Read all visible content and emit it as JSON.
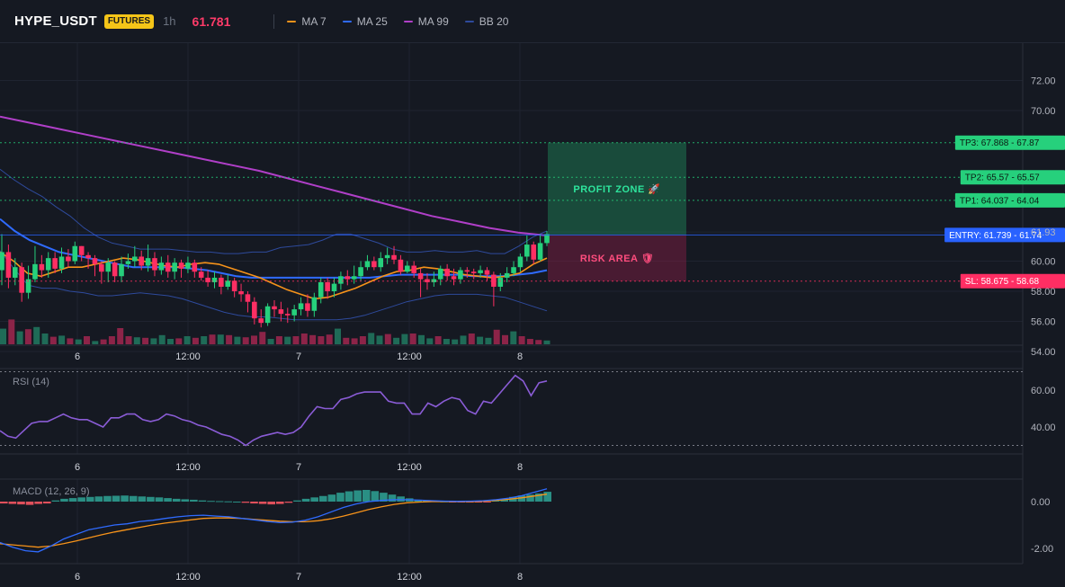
{
  "header": {
    "symbol": "HYPE_USDT",
    "badge": "FUTURES",
    "timeframe": "1h",
    "last_price": "61.781",
    "legend": [
      {
        "label": "MA 7",
        "color": "#f7931a"
      },
      {
        "label": "MA 25",
        "color": "#2f6bff"
      },
      {
        "label": "MA 99",
        "color": "#b03fc8"
      },
      {
        "label": "BB 20",
        "color": "#2e4a9c"
      }
    ]
  },
  "colors": {
    "up": "#26d07c",
    "down": "#ff2e63",
    "ma7": "#f7931a",
    "ma25": "#2f6bff",
    "ma99": "#b03fc8",
    "bb": "#2e4a9c",
    "rsi": "#8a5cd6",
    "macd": "#2f6bff",
    "signal": "#f7931a",
    "entry": "#2962ff",
    "tp": "#26d07c",
    "sl": "#ff2e63"
  },
  "chart_data": [
    {
      "type": "candlestick",
      "pane": "price",
      "yaxis": {
        "ticks": [
          "72.00",
          "70.00",
          "61.93",
          "60.00",
          "58.00",
          "56.00",
          "54.00"
        ]
      },
      "xaxis": {
        "ticks": [
          "6",
          "12:00",
          "7",
          "12:00",
          "8"
        ]
      },
      "series": [
        {
          "name": "MA 7",
          "values": [
            60.6,
            60.0,
            59.2,
            59.0,
            59.3,
            59.6,
            59.6,
            59.8,
            60.0,
            60.2,
            60.1,
            59.9,
            59.7,
            59.6,
            59.8,
            59.9,
            59.8,
            59.5,
            59.2,
            58.9,
            58.5,
            58.1,
            57.8,
            57.5,
            57.6,
            57.9,
            58.2,
            58.6,
            59.0,
            59.3,
            59.4,
            59.6,
            59.5,
            59.3,
            59.1,
            59.0,
            58.9,
            59.0,
            59.2,
            59.8,
            60.2
          ]
        },
        {
          "name": "MA 25",
          "values": [
            62.8,
            62.0,
            61.4,
            61.0,
            60.6,
            60.4,
            60.2,
            60.0,
            59.8,
            59.6,
            59.6,
            59.6,
            59.6,
            59.5,
            59.4,
            59.2,
            59.0,
            58.9,
            58.9,
            58.9,
            58.9,
            58.9,
            58.9,
            58.9,
            58.9,
            58.9,
            59.0,
            59.1,
            59.1,
            59.1,
            59.1,
            59.1,
            59.0,
            59.0,
            59.0,
            59.1,
            59.2,
            59.4
          ]
        },
        {
          "name": "MA 99",
          "values": [
            69.6,
            69.2,
            68.8,
            68.4,
            68.0,
            67.6,
            67.2,
            66.8,
            66.4,
            66.0,
            65.5,
            65.0,
            64.5,
            64.0,
            63.5,
            63.0,
            62.6,
            62.2,
            61.9,
            61.7
          ]
        },
        {
          "name": "BB 20 upper",
          "values": [
            66.1,
            65.4,
            64.8,
            64.3,
            63.6,
            63.0,
            62.2,
            61.6,
            61.2,
            61.0,
            60.8,
            60.8,
            60.8,
            60.7,
            60.6,
            60.6,
            60.5,
            60.5,
            60.6,
            60.6,
            60.9,
            61.0,
            61.1,
            61.4,
            61.8,
            61.8,
            61.5,
            61.2,
            60.8,
            60.6,
            60.6,
            60.7,
            60.6,
            60.6,
            60.7,
            60.5,
            60.5,
            61.0,
            61.6,
            62.0
          ]
        },
        {
          "name": "BB 20 lower",
          "values": [
            60.7,
            59.5,
            58.4,
            58.2,
            58.2,
            58.0,
            57.9,
            57.7,
            57.7,
            57.8,
            57.9,
            57.8,
            57.7,
            57.5,
            57.2,
            56.9,
            56.6,
            56.4,
            56.3,
            56.3,
            56.2,
            56.1,
            56.1,
            56.1,
            56.1,
            56.2,
            56.4,
            56.7,
            57.0,
            57.3,
            57.5,
            57.7,
            57.8,
            57.8,
            57.8,
            57.7,
            57.6,
            57.3,
            57.0,
            56.7
          ]
        }
      ],
      "candles": [
        [
          59.4,
          60.6,
          61.8,
          58.4
        ],
        [
          60.6,
          58.9,
          61.1,
          58.2
        ],
        [
          58.9,
          59.6,
          60.2,
          58.4
        ],
        [
          59.6,
          57.9,
          59.9,
          57.3
        ],
        [
          57.9,
          58.8,
          59.7,
          57.5
        ],
        [
          58.8,
          59.8,
          61.0,
          58.6
        ],
        [
          59.8,
          59.4,
          60.4,
          58.9
        ],
        [
          59.4,
          60.2,
          60.6,
          58.9
        ],
        [
          60.2,
          59.5,
          60.6,
          59.2
        ],
        [
          59.5,
          60.3,
          60.9,
          59.2
        ],
        [
          60.3,
          60.0,
          60.8,
          59.6
        ],
        [
          60.0,
          61.0,
          61.3,
          59.8
        ],
        [
          61.0,
          60.4,
          61.0,
          60.0
        ],
        [
          60.4,
          60.2,
          60.6,
          59.5
        ],
        [
          60.2,
          59.8,
          60.4,
          59.0
        ],
        [
          59.8,
          59.3,
          60.0,
          58.5
        ],
        [
          59.3,
          59.9,
          60.2,
          58.6
        ],
        [
          59.9,
          59.0,
          60.0,
          58.6
        ],
        [
          59.0,
          59.8,
          60.3,
          58.6
        ],
        [
          59.8,
          60.0,
          60.5,
          59.5
        ],
        [
          60.0,
          60.3,
          61.0,
          59.6
        ],
        [
          60.3,
          59.7,
          60.7,
          59.4
        ],
        [
          59.7,
          60.2,
          61.1,
          59.3
        ],
        [
          60.2,
          59.4,
          60.6,
          59.0
        ],
        [
          59.4,
          59.9,
          60.3,
          59.1
        ],
        [
          59.9,
          59.3,
          60.4,
          58.9
        ],
        [
          59.3,
          59.9,
          60.2,
          58.8
        ],
        [
          59.9,
          59.5,
          60.1,
          58.9
        ],
        [
          59.5,
          59.9,
          60.3,
          59.2
        ],
        [
          59.9,
          59.3,
          60.1,
          58.9
        ],
        [
          59.3,
          58.9,
          59.6,
          58.7
        ],
        [
          58.9,
          58.6,
          59.4,
          58.3
        ],
        [
          58.6,
          58.9,
          59.3,
          58.2
        ],
        [
          58.9,
          58.3,
          59.1,
          57.8
        ],
        [
          58.3,
          58.7,
          59.1,
          58.1
        ],
        [
          58.7,
          58.0,
          58.9,
          57.6
        ],
        [
          58.0,
          57.8,
          58.5,
          57.3
        ],
        [
          57.8,
          57.3,
          58.0,
          56.6
        ],
        [
          57.3,
          56.2,
          57.6,
          55.8
        ],
        [
          56.2,
          55.9,
          56.8,
          55.6
        ],
        [
          55.9,
          57.0,
          57.2,
          55.7
        ],
        [
          57.0,
          56.8,
          57.4,
          56.3
        ],
        [
          56.8,
          56.5,
          57.3,
          56.0
        ],
        [
          56.5,
          56.4,
          56.9,
          55.9
        ],
        [
          56.4,
          56.8,
          57.1,
          56.0
        ],
        [
          56.8,
          57.2,
          57.6,
          56.4
        ],
        [
          57.2,
          56.7,
          57.8,
          56.3
        ],
        [
          56.7,
          57.6,
          57.9,
          56.3
        ],
        [
          57.6,
          58.6,
          58.9,
          57.2
        ],
        [
          58.6,
          58.0,
          58.9,
          57.5
        ],
        [
          58.0,
          58.5,
          58.9,
          57.6
        ],
        [
          58.5,
          59.0,
          59.3,
          58.1
        ],
        [
          59.0,
          58.8,
          59.4,
          58.4
        ],
        [
          58.8,
          59.0,
          59.7,
          58.5
        ],
        [
          59.0,
          59.6,
          60.0,
          58.7
        ],
        [
          59.6,
          60.0,
          60.4,
          59.4
        ],
        [
          60.0,
          59.6,
          60.3,
          59.4
        ],
        [
          59.6,
          60.2,
          60.6,
          59.3
        ],
        [
          60.2,
          60.4,
          60.9,
          59.8
        ],
        [
          60.4,
          60.1,
          61.0,
          59.8
        ],
        [
          60.1,
          59.3,
          60.4,
          59.1
        ],
        [
          59.3,
          59.7,
          60.0,
          59.2
        ],
        [
          59.7,
          59.2,
          60.0,
          58.9
        ],
        [
          59.2,
          58.8,
          59.5,
          57.6
        ],
        [
          58.8,
          58.6,
          59.2,
          58.1
        ],
        [
          58.6,
          58.8,
          59.3,
          58.3
        ],
        [
          58.8,
          59.5,
          59.7,
          58.4
        ],
        [
          59.5,
          59.0,
          59.8,
          58.7
        ],
        [
          59.0,
          58.8,
          59.5,
          58.4
        ],
        [
          58.8,
          59.4,
          59.6,
          58.5
        ],
        [
          59.4,
          59.3,
          59.6,
          58.9
        ],
        [
          59.3,
          59.2,
          59.5,
          58.8
        ],
        [
          59.2,
          59.4,
          59.7,
          58.9
        ],
        [
          59.4,
          59.1,
          59.6,
          58.7
        ],
        [
          59.1,
          58.3,
          59.3,
          57.0
        ],
        [
          58.3,
          58.9,
          59.2,
          58.0
        ],
        [
          58.9,
          59.2,
          59.6,
          58.6
        ],
        [
          59.2,
          59.6,
          60.0,
          59.0
        ],
        [
          59.6,
          60.3,
          60.5,
          59.3
        ],
        [
          60.3,
          61.1,
          61.7,
          60.0
        ],
        [
          61.1,
          60.1,
          61.3,
          59.8
        ],
        [
          60.1,
          61.2,
          61.8,
          60.0
        ],
        [
          61.2,
          61.8,
          62.0,
          61.0
        ]
      ]
    },
    {
      "type": "bar",
      "pane": "volume",
      "values": [
        58,
        92,
        48,
        56,
        64,
        40,
        28,
        32,
        22,
        18,
        30,
        12,
        18,
        30,
        60,
        30,
        26,
        24,
        22,
        34,
        20,
        22,
        30,
        24,
        30,
        36,
        36,
        34,
        28,
        26,
        32,
        46,
        20,
        30,
        28,
        30,
        40,
        34,
        30,
        36,
        58,
        24,
        22,
        30,
        42,
        32,
        38,
        24,
        38,
        40,
        34,
        22,
        30,
        20,
        18,
        32,
        40,
        28,
        24,
        54,
        34,
        48,
        30,
        20,
        16,
        14
      ]
    },
    {
      "type": "line",
      "pane": "rsi",
      "title": "RSI (14)",
      "yaxis": {
        "ticks": [
          "60.00",
          "40.00"
        ],
        "overbought": 70,
        "oversold": 30
      },
      "xaxis": {
        "ticks": [
          "6",
          "12:00",
          "7",
          "12:00",
          "8"
        ]
      },
      "values": [
        38,
        35,
        34,
        38,
        42,
        43,
        43,
        45,
        47,
        45,
        44,
        44,
        42,
        40,
        45,
        45,
        47,
        47,
        44,
        43,
        44,
        47,
        46,
        44,
        43,
        41,
        40,
        38,
        36,
        35,
        33,
        30,
        33,
        35,
        36,
        37,
        36,
        37,
        40,
        46,
        51,
        50,
        50,
        55,
        56,
        58,
        59,
        59,
        59,
        54,
        53,
        53,
        47,
        47,
        53,
        51,
        54,
        56,
        55,
        49,
        47,
        54,
        53,
        58,
        63,
        68,
        65,
        57,
        64,
        65
      ]
    },
    {
      "type": "bar",
      "pane": "macd",
      "title": "MACD (12, 26, 9)",
      "yaxis": {
        "ticks": [
          "0.00",
          "-2.00"
        ]
      },
      "xaxis": {
        "ticks": [
          "6",
          "12:00",
          "7",
          "12:00",
          "8"
        ]
      },
      "histogram": [
        -0.08,
        -0.1,
        -0.12,
        -0.14,
        -0.1,
        -0.08,
        0.05,
        0.12,
        0.15,
        0.18,
        0.2,
        0.22,
        0.24,
        0.25,
        0.26,
        0.24,
        0.22,
        0.2,
        0.18,
        0.15,
        0.12,
        0.1,
        0.08,
        0.05,
        0.03,
        0.02,
        0.01,
        0.0,
        -0.05,
        -0.08,
        -0.1,
        -0.12,
        -0.1,
        -0.05,
        0.05,
        0.12,
        0.18,
        0.24,
        0.3,
        0.38,
        0.44,
        0.48,
        0.5,
        0.45,
        0.38,
        0.3,
        0.22,
        0.14,
        0.08,
        0.04,
        0.02,
        0.01,
        -0.01,
        -0.02,
        -0.04,
        -0.03,
        -0.02,
        0.05,
        0.12,
        0.2,
        0.26,
        0.3,
        0.35,
        0.42
      ],
      "series": [
        {
          "name": "MACD",
          "values": [
            -1.75,
            -1.95,
            -2.1,
            -2.15,
            -1.9,
            -1.6,
            -1.4,
            -1.2,
            -1.1,
            -1.0,
            -0.95,
            -0.85,
            -0.8,
            -0.72,
            -0.65,
            -0.6,
            -0.58,
            -0.62,
            -0.65,
            -0.72,
            -0.78,
            -0.85,
            -0.9,
            -0.88,
            -0.8,
            -0.65,
            -0.45,
            -0.25,
            -0.1,
            0.0,
            0.05,
            0.08,
            0.08,
            0.06,
            0.04,
            0.02,
            0.01,
            0.02,
            0.04,
            0.08,
            0.15,
            0.25,
            0.4,
            0.55
          ]
        },
        {
          "name": "Signal",
          "values": [
            -1.8,
            -1.85,
            -1.9,
            -1.95,
            -1.9,
            -1.8,
            -1.68,
            -1.55,
            -1.42,
            -1.3,
            -1.2,
            -1.1,
            -1.0,
            -0.92,
            -0.85,
            -0.78,
            -0.72,
            -0.7,
            -0.7,
            -0.72,
            -0.76,
            -0.8,
            -0.84,
            -0.86,
            -0.86,
            -0.82,
            -0.74,
            -0.62,
            -0.48,
            -0.34,
            -0.22,
            -0.12,
            -0.05,
            -0.02,
            0.0,
            0.0,
            0.0,
            0.0,
            0.02,
            0.05,
            0.1,
            0.16,
            0.24,
            0.32
          ]
        }
      ]
    }
  ],
  "trade": {
    "tp3": {
      "value": 67.868,
      "label": "TP3: 67.868",
      "axis": "67.87"
    },
    "tp2": {
      "value": 65.57,
      "label": "TP2: 65.57",
      "axis": "65.57"
    },
    "tp1": {
      "value": 64.037,
      "label": "TP1: 64.037",
      "axis": "64.04"
    },
    "entry": {
      "value": 61.739,
      "label": "ENTRY: 61.739",
      "axis": "61.74"
    },
    "sl": {
      "value": 58.675,
      "label": "SL: 58.675",
      "axis": "58.68"
    },
    "profit_label": "PROFIT ZONE 🚀",
    "risk_label": "RISK AREA 🛡"
  }
}
